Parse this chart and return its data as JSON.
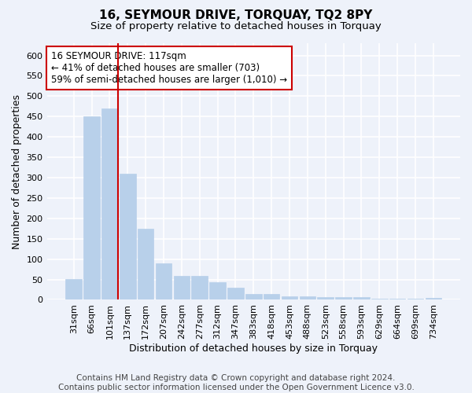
{
  "title": "16, SEYMOUR DRIVE, TORQUAY, TQ2 8PY",
  "subtitle": "Size of property relative to detached houses in Torquay",
  "xlabel": "Distribution of detached houses by size in Torquay",
  "ylabel": "Number of detached properties",
  "categories": [
    "31sqm",
    "66sqm",
    "101sqm",
    "137sqm",
    "172sqm",
    "207sqm",
    "242sqm",
    "277sqm",
    "312sqm",
    "347sqm",
    "383sqm",
    "418sqm",
    "453sqm",
    "488sqm",
    "523sqm",
    "558sqm",
    "593sqm",
    "629sqm",
    "664sqm",
    "699sqm",
    "734sqm"
  ],
  "values": [
    52,
    450,
    470,
    310,
    175,
    90,
    58,
    58,
    43,
    30,
    15,
    14,
    9,
    9,
    7,
    6,
    6,
    2,
    3,
    2,
    4
  ],
  "bar_color": "#b8d0ea",
  "bar_edge_color": "#b8d0ea",
  "highlight_index": 2,
  "highlight_line_color": "#cc0000",
  "annotation_text": "16 SEYMOUR DRIVE: 117sqm\n← 41% of detached houses are smaller (703)\n59% of semi-detached houses are larger (1,010) →",
  "annotation_box_color": "#cc0000",
  "ylim": [
    0,
    630
  ],
  "yticks": [
    0,
    50,
    100,
    150,
    200,
    250,
    300,
    350,
    400,
    450,
    500,
    550,
    600
  ],
  "footer_line1": "Contains HM Land Registry data © Crown copyright and database right 2024.",
  "footer_line2": "Contains public sector information licensed under the Open Government Licence v3.0.",
  "background_color": "#eef2fa",
  "grid_color": "#ffffff",
  "title_fontsize": 11,
  "subtitle_fontsize": 9.5,
  "axis_label_fontsize": 9,
  "tick_fontsize": 8,
  "footer_fontsize": 7.5
}
